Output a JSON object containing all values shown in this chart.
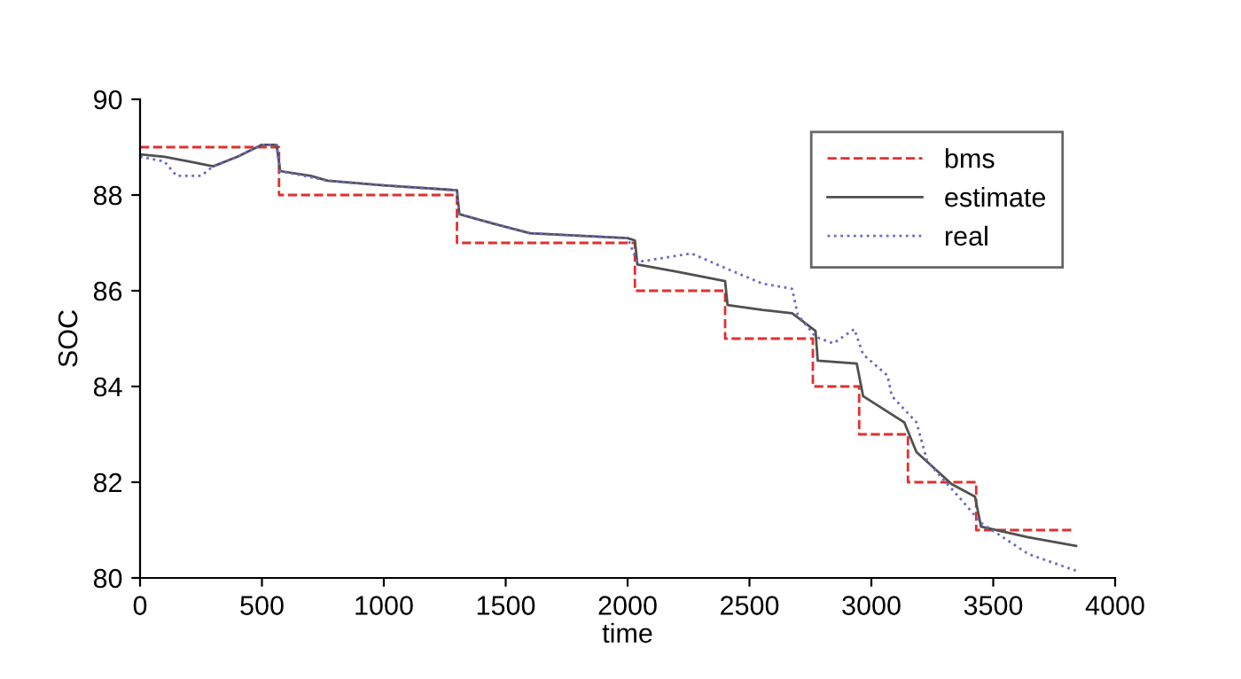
{
  "chart_data": {
    "type": "line",
    "xlabel": "time",
    "ylabel": "SOC",
    "xlim": [
      0,
      4000
    ],
    "ylim": [
      80,
      90
    ],
    "xticks": [
      0,
      500,
      1000,
      1500,
      2000,
      2500,
      3000,
      3500,
      4000
    ],
    "yticks": [
      80,
      82,
      84,
      86,
      88,
      90
    ],
    "grid": false,
    "legend": "top right",
    "marker": "none",
    "series": [
      {
        "name": "bms",
        "type": "step",
        "color": "#e03030",
        "line_style": "dashed",
        "x": [
          0,
          570,
          1300,
          2030,
          2400,
          2760,
          2950,
          3150,
          3430,
          3830
        ],
        "values": [
          89,
          88,
          87,
          86,
          85,
          84,
          83,
          82,
          81,
          81
        ]
      },
      {
        "name": "estimate",
        "color": "#505050",
        "line_style": "solid",
        "x": [
          0,
          100,
          200,
          300,
          400,
          500,
          560,
          575,
          700,
          770,
          1000,
          1300,
          1310,
          1450,
          1600,
          2000,
          2030,
          2040,
          2200,
          2400,
          2410,
          2553,
          2675,
          2771,
          2780,
          2940,
          2966,
          3135,
          3185,
          3330,
          3425,
          3450,
          3644,
          3840
        ],
        "values": [
          88.85,
          88.8,
          88.7,
          88.6,
          88.8,
          89.05,
          89.05,
          88.5,
          88.4,
          88.3,
          88.2,
          88.1,
          87.6,
          87.4,
          87.2,
          87.1,
          87.05,
          86.55,
          86.4,
          86.2,
          85.7,
          85.6,
          85.53,
          85.16,
          84.54,
          84.48,
          83.8,
          83.25,
          82.63,
          81.96,
          81.7,
          81.07,
          80.85,
          80.67
        ]
      },
      {
        "name": "real",
        "color": "#6a6ac8",
        "line_style": "dotted",
        "x": [
          0,
          100,
          150,
          250,
          300,
          400,
          500,
          560,
          575,
          770,
          1000,
          1300,
          1310,
          1600,
          2000,
          2040,
          2262,
          2407,
          2553,
          2675,
          2698,
          2771,
          2844,
          2930,
          2966,
          3066,
          3084,
          3185,
          3229,
          3375,
          3450,
          3644,
          3840
        ],
        "values": [
          88.8,
          88.7,
          88.4,
          88.4,
          88.6,
          88.8,
          89.05,
          89.05,
          88.5,
          88.3,
          88.2,
          88.1,
          87.6,
          87.2,
          87.1,
          86.6,
          86.78,
          86.46,
          86.15,
          86.04,
          85.5,
          85.04,
          84.9,
          85.2,
          84.67,
          84.23,
          83.8,
          83.25,
          82.44,
          81.6,
          81.15,
          80.5,
          80.15
        ]
      }
    ]
  }
}
